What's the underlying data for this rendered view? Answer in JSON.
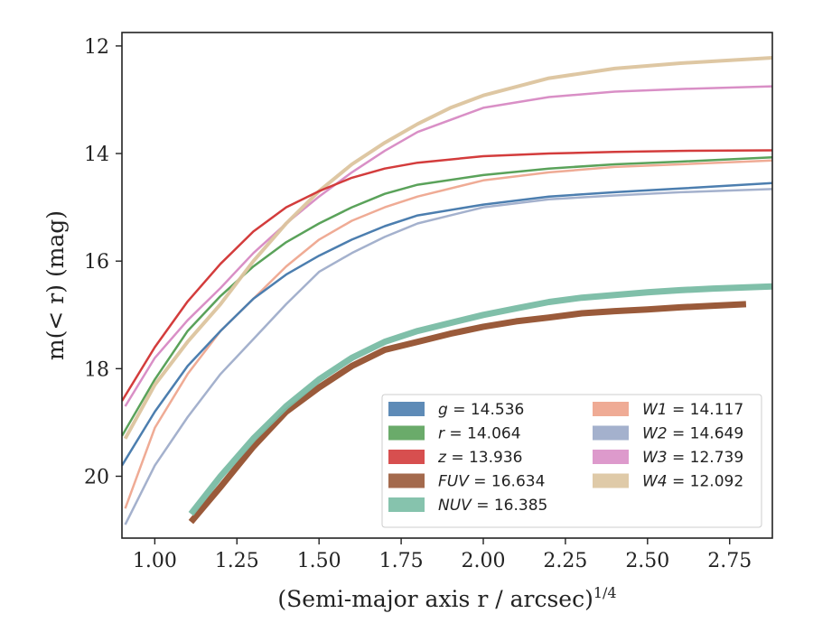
{
  "chart_data": {
    "type": "line",
    "title": "",
    "xlabel": "(Semi-major axis r / arcsec)",
    "xlabel_sup": "1/4",
    "ylabel": "m(< r) (mag)",
    "xlim": [
      0.9,
      2.88
    ],
    "ylim": [
      21.15,
      11.75
    ],
    "y_inverted": true,
    "grid": false,
    "legend_placement": "lower-right",
    "x_ticks": [
      1.0,
      1.25,
      1.5,
      1.75,
      2.0,
      2.25,
      2.5,
      2.75
    ],
    "x_tick_labels": [
      "1.00",
      "1.25",
      "1.50",
      "1.75",
      "2.00",
      "2.25",
      "2.50",
      "2.75"
    ],
    "y_ticks": [
      12,
      14,
      16,
      18,
      20
    ],
    "y_tick_labels": [
      "12",
      "14",
      "16",
      "18",
      "20"
    ],
    "series": [
      {
        "name": "g = 14.536",
        "band": "g",
        "value": "14.536",
        "color": "#4c7eaf",
        "width": 2.5,
        "opacity": 1,
        "x": [
          0.9,
          1.0,
          1.1,
          1.2,
          1.3,
          1.4,
          1.5,
          1.6,
          1.7,
          1.8,
          2.0,
          2.2,
          2.4,
          2.6,
          2.88
        ],
        "y": [
          19.8,
          18.8,
          17.95,
          17.3,
          16.7,
          16.25,
          15.9,
          15.6,
          15.35,
          15.15,
          14.95,
          14.8,
          14.72,
          14.65,
          14.55
        ]
      },
      {
        "name": "r = 14.064",
        "band": "r",
        "value": "14.064",
        "color": "#5aa25a",
        "width": 2.5,
        "opacity": 1,
        "x": [
          0.9,
          1.0,
          1.1,
          1.2,
          1.3,
          1.4,
          1.5,
          1.6,
          1.7,
          1.8,
          2.0,
          2.2,
          2.4,
          2.6,
          2.88
        ],
        "y": [
          19.25,
          18.2,
          17.3,
          16.65,
          16.1,
          15.65,
          15.3,
          15.0,
          14.75,
          14.58,
          14.4,
          14.28,
          14.2,
          14.15,
          14.07
        ]
      },
      {
        "name": "z = 13.936",
        "band": "z",
        "value": "13.936",
        "color": "#d33c3c",
        "width": 2.5,
        "opacity": 1,
        "x": [
          0.9,
          1.0,
          1.1,
          1.2,
          1.3,
          1.4,
          1.5,
          1.6,
          1.7,
          1.8,
          2.0,
          2.2,
          2.4,
          2.6,
          2.88
        ],
        "y": [
          18.6,
          17.6,
          16.75,
          16.05,
          15.45,
          15.0,
          14.7,
          14.45,
          14.28,
          14.17,
          14.05,
          14.0,
          13.97,
          13.95,
          13.94
        ]
      },
      {
        "name": "FUV = 16.634",
        "band": "FUV",
        "value": "16.634",
        "color": "#9a5a3a",
        "width": 7,
        "opacity": 1,
        "x": [
          1.11,
          1.2,
          1.3,
          1.4,
          1.5,
          1.6,
          1.7,
          1.8,
          1.9,
          2.0,
          2.1,
          2.2,
          2.3,
          2.4,
          2.5,
          2.6,
          2.7,
          2.8
        ],
        "y": [
          20.85,
          20.2,
          19.45,
          18.8,
          18.35,
          17.95,
          17.65,
          17.5,
          17.35,
          17.22,
          17.12,
          17.05,
          16.97,
          16.93,
          16.9,
          16.86,
          16.83,
          16.8
        ]
      },
      {
        "name": "NUV = 16.385",
        "band": "NUV",
        "value": "16.385",
        "color": "#79bca4",
        "width": 7,
        "opacity": 0.95,
        "x": [
          1.11,
          1.2,
          1.3,
          1.4,
          1.5,
          1.6,
          1.7,
          1.8,
          1.9,
          2.0,
          2.1,
          2.2,
          2.3,
          2.4,
          2.5,
          2.6,
          2.7,
          2.88
        ],
        "y": [
          20.7,
          20.0,
          19.3,
          18.7,
          18.2,
          17.8,
          17.5,
          17.3,
          17.15,
          17.0,
          16.88,
          16.76,
          16.68,
          16.63,
          16.58,
          16.54,
          16.51,
          16.47
        ]
      },
      {
        "name": "W1 = 14.117",
        "band": "W1",
        "value": "14.117",
        "color": "#eda28a",
        "width": 2.5,
        "opacity": 0.9,
        "x": [
          0.91,
          1.0,
          1.1,
          1.2,
          1.3,
          1.4,
          1.5,
          1.6,
          1.7,
          1.8,
          2.0,
          2.2,
          2.4,
          2.6,
          2.88
        ],
        "y": [
          20.6,
          19.1,
          18.1,
          17.3,
          16.7,
          16.1,
          15.6,
          15.25,
          15.0,
          14.8,
          14.5,
          14.35,
          14.25,
          14.2,
          14.13
        ]
      },
      {
        "name": "W2 = 14.649",
        "band": "W2",
        "value": "14.649",
        "color": "#9aa8c8",
        "width": 2.5,
        "opacity": 0.9,
        "x": [
          0.91,
          1.0,
          1.1,
          1.2,
          1.3,
          1.4,
          1.5,
          1.6,
          1.7,
          1.8,
          2.0,
          2.2,
          2.4,
          2.6,
          2.88
        ],
        "y": [
          20.9,
          19.8,
          18.9,
          18.1,
          17.45,
          16.8,
          16.2,
          15.85,
          15.55,
          15.3,
          15.0,
          14.85,
          14.78,
          14.72,
          14.66
        ]
      },
      {
        "name": "W3 = 12.739",
        "band": "W3",
        "value": "12.739",
        "color": "#d98fc6",
        "width": 2.5,
        "opacity": 1,
        "x": [
          0.91,
          1.0,
          1.1,
          1.2,
          1.3,
          1.4,
          1.5,
          1.6,
          1.7,
          1.8,
          2.0,
          2.2,
          2.4,
          2.6,
          2.88
        ],
        "y": [
          18.7,
          17.8,
          17.1,
          16.5,
          15.85,
          15.3,
          14.8,
          14.35,
          13.95,
          13.6,
          13.15,
          12.95,
          12.85,
          12.8,
          12.75
        ]
      },
      {
        "name": "W4 = 12.092",
        "band": "W4",
        "value": "12.092",
        "color": "#dcc49e",
        "width": 4,
        "opacity": 0.95,
        "x": [
          0.91,
          1.0,
          1.1,
          1.2,
          1.3,
          1.4,
          1.5,
          1.6,
          1.7,
          1.8,
          1.9,
          2.0,
          2.2,
          2.4,
          2.6,
          2.88
        ],
        "y": [
          19.3,
          18.3,
          17.5,
          16.8,
          16.0,
          15.3,
          14.7,
          14.2,
          13.8,
          13.45,
          13.15,
          12.92,
          12.6,
          12.42,
          12.32,
          12.22
        ]
      }
    ],
    "legend": {
      "columns": 2,
      "column1": [
        "g",
        "r",
        "z",
        "FUV",
        "NUV"
      ],
      "column2": [
        "W1",
        "W2",
        "W3",
        "W4"
      ]
    }
  }
}
